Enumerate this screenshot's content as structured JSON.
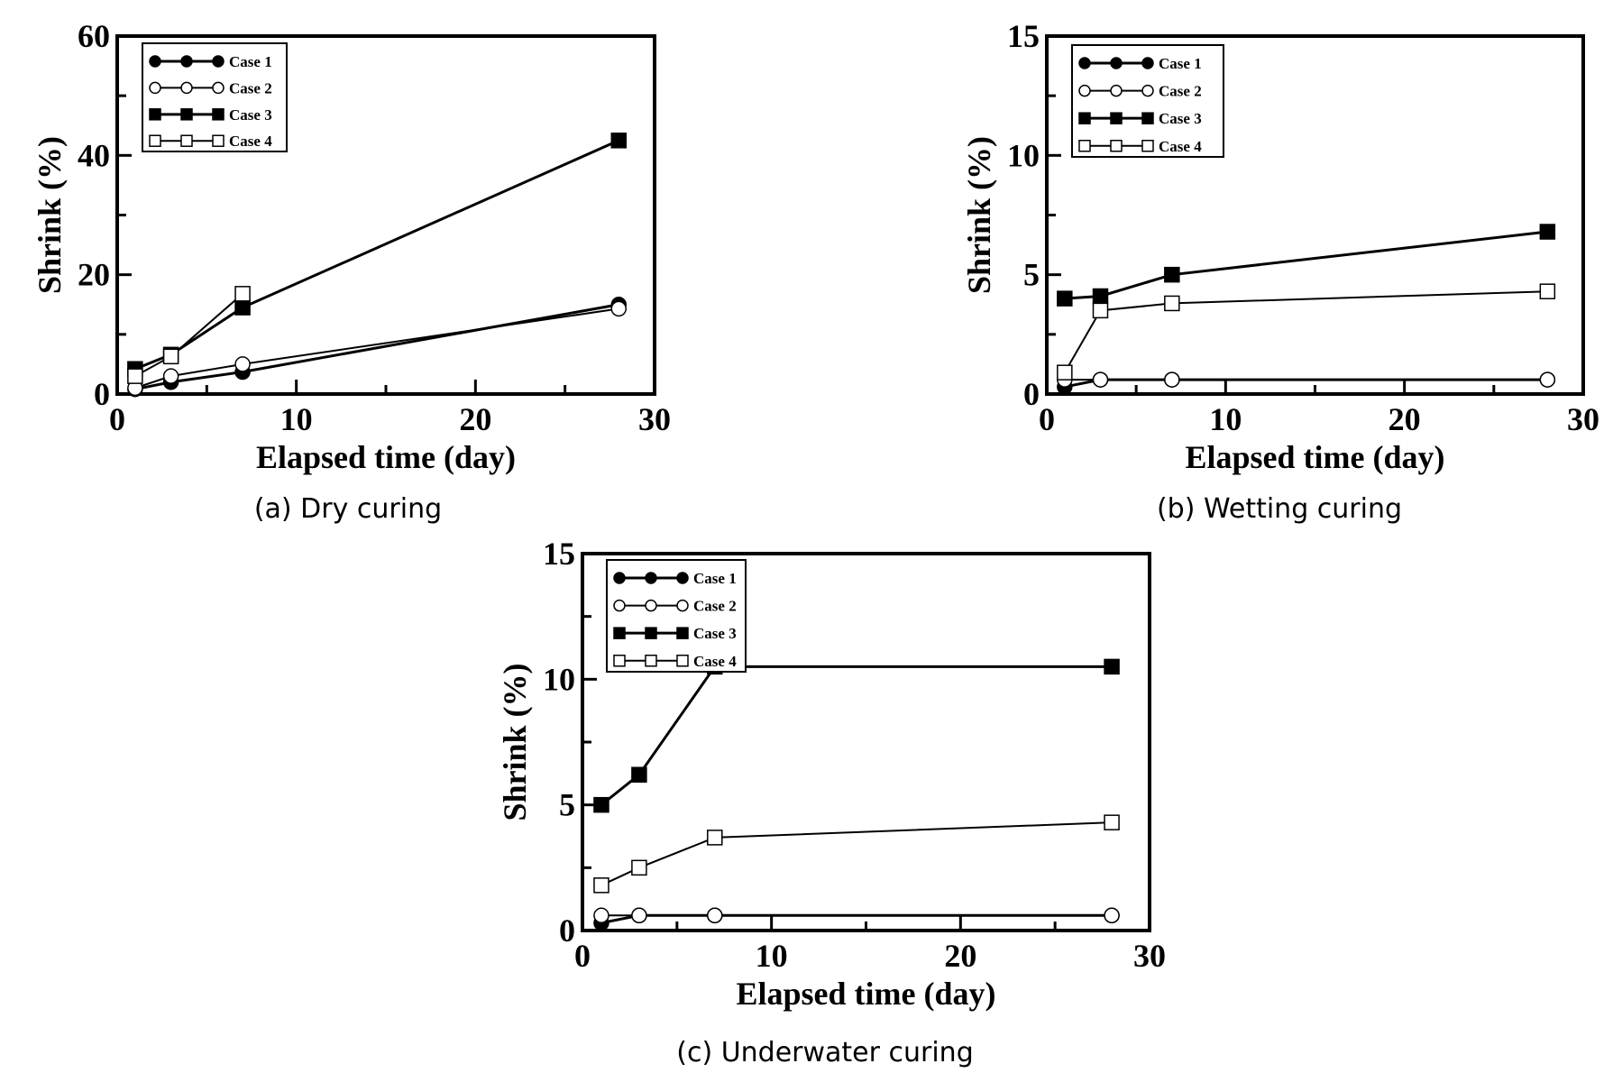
{
  "chart_data": [
    {
      "type": "line",
      "caption": "(a) Dry curing",
      "xlabel": "Elapsed time (day)",
      "ylabel": "Shrink (%)",
      "xlim": [
        0,
        30
      ],
      "ylim": [
        0,
        60
      ],
      "xticks": [
        0,
        10,
        20,
        30
      ],
      "yticks": [
        0,
        20,
        40,
        60
      ],
      "legend_position": "top-left",
      "series": [
        {
          "name": "Case 1",
          "marker": "filled-circle",
          "x": [
            1,
            3,
            7,
            28
          ],
          "y": [
            0.8,
            2.0,
            3.7,
            15.0
          ]
        },
        {
          "name": "Case 2",
          "marker": "open-circle",
          "x": [
            1,
            3,
            7,
            28
          ],
          "y": [
            1.0,
            3.0,
            5.0,
            14.3
          ]
        },
        {
          "name": "Case 3",
          "marker": "filled-square",
          "x": [
            1,
            3,
            7,
            28
          ],
          "y": [
            4.2,
            6.6,
            14.5,
            42.5
          ]
        },
        {
          "name": "Case 4",
          "marker": "open-square",
          "x": [
            1,
            3,
            7
          ],
          "y": [
            3.0,
            6.3,
            16.8
          ]
        }
      ]
    },
    {
      "type": "line",
      "caption": "(b) Wetting curing",
      "xlabel": "Elapsed time (day)",
      "ylabel": "Shrink (%)",
      "xlim": [
        0,
        30
      ],
      "ylim": [
        0,
        15
      ],
      "xticks": [
        0,
        10,
        20,
        30
      ],
      "yticks": [
        0,
        5,
        10,
        15
      ],
      "legend_position": "top-left",
      "series": [
        {
          "name": "Case 1",
          "marker": "filled-circle",
          "x": [
            1,
            3,
            7,
            28
          ],
          "y": [
            0.3,
            0.6,
            0.6,
            0.6
          ]
        },
        {
          "name": "Case 2",
          "marker": "open-circle",
          "x": [
            1,
            3,
            7,
            28
          ],
          "y": [
            0.6,
            0.6,
            0.6,
            0.6
          ]
        },
        {
          "name": "Case 3",
          "marker": "filled-square",
          "x": [
            1,
            3,
            7,
            28
          ],
          "y": [
            4.0,
            4.1,
            5.0,
            6.8
          ]
        },
        {
          "name": "Case 4",
          "marker": "open-square",
          "x": [
            1,
            3,
            7,
            28
          ],
          "y": [
            0.9,
            3.5,
            3.8,
            4.3
          ]
        }
      ]
    },
    {
      "type": "line",
      "caption": "(c) Underwater curing",
      "xlabel": "Elapsed time (day)",
      "ylabel": "Shrink (%)",
      "xlim": [
        0,
        30
      ],
      "ylim": [
        0,
        15
      ],
      "xticks": [
        0,
        10,
        20,
        30
      ],
      "yticks": [
        0,
        5,
        10,
        15
      ],
      "legend_position": "top-left",
      "series": [
        {
          "name": "Case 1",
          "marker": "filled-circle",
          "x": [
            1,
            3,
            7,
            28
          ],
          "y": [
            0.3,
            0.6,
            0.6,
            0.6
          ]
        },
        {
          "name": "Case 2",
          "marker": "open-circle",
          "x": [
            1,
            3,
            7,
            28
          ],
          "y": [
            0.6,
            0.6,
            0.6,
            0.6
          ]
        },
        {
          "name": "Case 3",
          "marker": "filled-square",
          "x": [
            1,
            3,
            7,
            28
          ],
          "y": [
            5.0,
            6.2,
            10.5,
            10.5
          ]
        },
        {
          "name": "Case 4",
          "marker": "open-square",
          "x": [
            1,
            3,
            7,
            28
          ],
          "y": [
            1.8,
            2.5,
            3.7,
            4.3
          ]
        }
      ]
    }
  ]
}
